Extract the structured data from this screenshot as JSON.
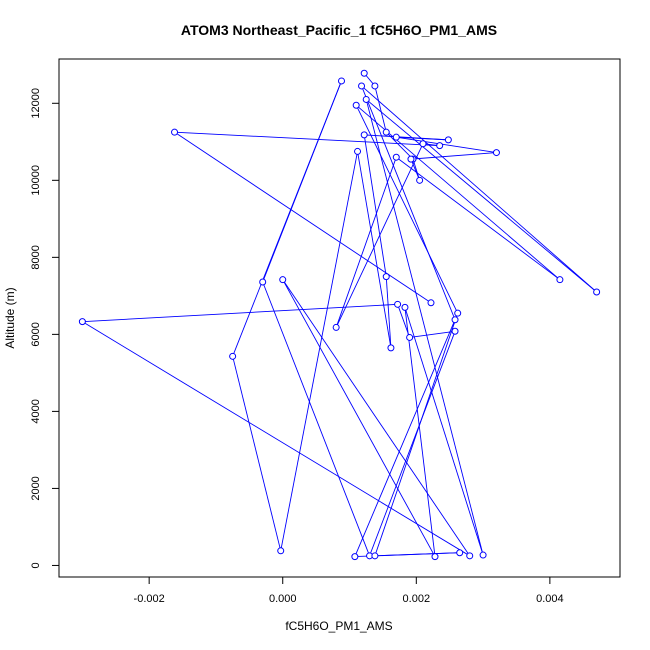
{
  "chart_data": {
    "type": "line",
    "title": "ATOM3 Northeast_Pacific_1 fC5H6O_PM1_AMS",
    "xlabel": "fC5H6O_PM1_AMS",
    "ylabel": "Altitude (m)",
    "xlim": [
      -0.00335,
      0.00505
    ],
    "ylim": [
      -300,
      13150
    ],
    "x_ticks": [
      -0.002,
      0.0,
      0.002,
      0.004
    ],
    "x_tick_labels": [
      "-0.002",
      "0.000",
      "0.002",
      "0.004"
    ],
    "y_ticks": [
      0,
      2000,
      4000,
      6000,
      8000,
      10000,
      12000
    ],
    "y_tick_labels": [
      "0",
      "2000",
      "4000",
      "6000",
      "8000",
      "10000",
      "12000"
    ],
    "grid": false,
    "legend": "none",
    "color": "#0000ff",
    "series": [
      {
        "points": [
          {
            "x": 0.00122,
            "y": 12780
          },
          {
            "x": 0.00138,
            "y": 12450
          },
          {
            "x": 0.00155,
            "y": 11250
          },
          {
            "x": 0.00195,
            "y": 10550
          },
          {
            "x": 0.00205,
            "y": 10000
          },
          {
            "x": 0.00192,
            "y": 10550
          },
          {
            "x": 0.0032,
            "y": 10720
          },
          {
            "x": 0.0017,
            "y": 11120
          },
          {
            "x": 0.00248,
            "y": 11050
          },
          {
            "x": 0.00122,
            "y": 11180
          },
          {
            "x": 0.00155,
            "y": 7500
          },
          {
            "x": 0.00162,
            "y": 5650
          },
          {
            "x": 0.00112,
            "y": 10750
          },
          {
            "x": -3e-05,
            "y": 380
          },
          {
            "x": -0.00075,
            "y": 5430
          },
          {
            "x": 0.00088,
            "y": 12580
          },
          {
            "x": -0.0003,
            "y": 7360
          },
          {
            "x": 0.0013,
            "y": 250
          },
          {
            "x": 0.00258,
            "y": 6080
          },
          {
            "x": 0.0019,
            "y": 5920
          },
          {
            "x": 0.00172,
            "y": 6780
          },
          {
            "x": -0.003,
            "y": 6330
          },
          {
            "x": 0.0028,
            "y": 250
          },
          {
            "x": 0.0,
            "y": 7420
          },
          {
            "x": 0.00228,
            "y": 230
          },
          {
            "x": 0.00183,
            "y": 6700
          },
          {
            "x": 0.003,
            "y": 270
          },
          {
            "x": 0.00125,
            "y": 12100
          },
          {
            "x": 0.0047,
            "y": 7100
          },
          {
            "x": 0.00118,
            "y": 12450
          },
          {
            "x": 0.00258,
            "y": 6380
          },
          {
            "x": 0.00108,
            "y": 230
          },
          {
            "x": 0.00265,
            "y": 330
          },
          {
            "x": 0.00138,
            "y": 250
          },
          {
            "x": 0.00262,
            "y": 6550
          },
          {
            "x": 0.0011,
            "y": 11950
          },
          {
            "x": 0.00415,
            "y": 7420
          },
          {
            "x": 0.0017,
            "y": 10600
          },
          {
            "x": 0.0008,
            "y": 6180
          },
          {
            "x": 0.0021,
            "y": 10950
          },
          {
            "x": 0.00235,
            "y": 10900
          },
          {
            "x": -0.00162,
            "y": 11250
          },
          {
            "x": 0.00222,
            "y": 6820
          }
        ]
      }
    ]
  }
}
